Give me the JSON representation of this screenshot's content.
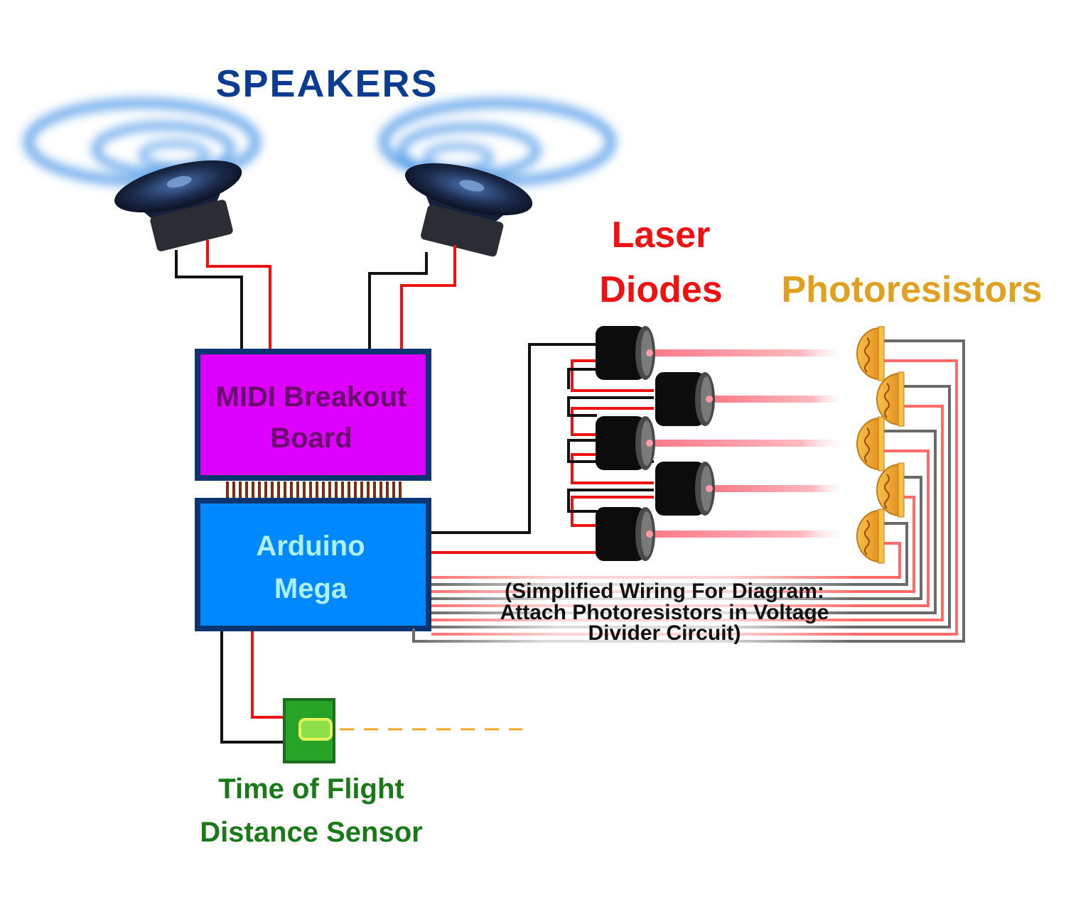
{
  "labels": {
    "speakers": "SPEAKERS",
    "laser_line1": "Laser",
    "laser_line2": "Diodes",
    "photoresistors": "Photoresistors",
    "midi_line1": "MIDI Breakout",
    "midi_line2": "Board",
    "arduino_line1": "Arduino",
    "arduino_line2": "Mega",
    "note_line1": "(Simplified Wiring For Diagram:",
    "note_line2": "Attach Photoresistors in Voltage",
    "note_line3": "Divider Circuit)",
    "tof_line1": "Time of Flight",
    "tof_line2": "Distance Sensor"
  },
  "colors": {
    "speakers_text": "#0a3d91",
    "laser_text": "#ee1111",
    "photo_text": "#e0a020",
    "midi_fill": "#dd00ff",
    "midi_text": "#6a0a6a",
    "arduino_fill": "#0088ff",
    "arduino_text": "#aef0ff",
    "board_border": "#0a3570",
    "tof_text": "#1a7a1a",
    "wire_red": "#ee1111",
    "wire_black": "#111111",
    "wave_blue": "#3d8fe6"
  },
  "icons": {
    "speaker": "speaker-icon",
    "laser_diode": "laser-diode-icon",
    "photoresistor": "photoresistor-icon",
    "tof_sensor": "distance-sensor-icon"
  }
}
